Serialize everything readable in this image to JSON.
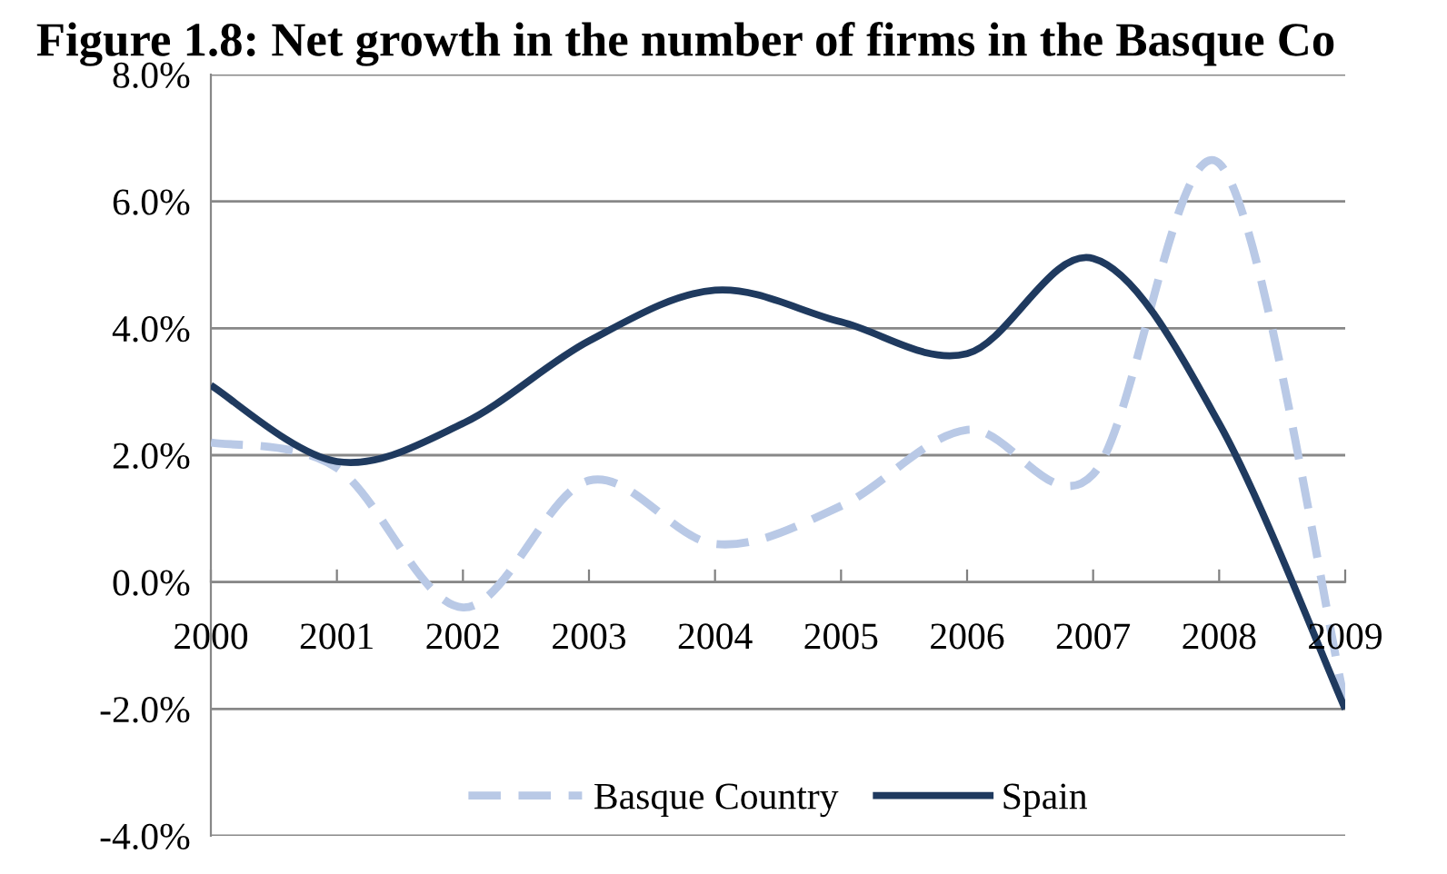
{
  "chart_data": {
    "type": "line",
    "title": "Figure 1.8: Net growth in the number of firms in the Basque Co",
    "categories": [
      "2000",
      "2001",
      "2002",
      "2003",
      "2004",
      "2005",
      "2006",
      "2007",
      "2008",
      "2009"
    ],
    "series": [
      {
        "name": "Basque Country",
        "color": "#b9c9e6",
        "line_style": "dashed",
        "values": [
          2.2,
          1.8,
          -0.4,
          1.6,
          0.6,
          1.2,
          2.4,
          1.7,
          6.6,
          -1.9
        ]
      },
      {
        "name": "Spain",
        "color": "#1f3a5f",
        "line_style": "solid",
        "values": [
          3.1,
          1.9,
          2.5,
          3.8,
          4.6,
          4.1,
          3.6,
          5.1,
          2.5,
          -2.0
        ]
      }
    ],
    "ylim": [
      -4,
      8
    ],
    "yticks": [
      {
        "value": -4,
        "label": "-4.0%"
      },
      {
        "value": -2,
        "label": "-2.0%"
      },
      {
        "value": 0,
        "label": "0.0%"
      },
      {
        "value": 2,
        "label": "2.0%"
      },
      {
        "value": 4,
        "label": "4.0%"
      },
      {
        "value": 6,
        "label": "6.0%"
      },
      {
        "value": 8,
        "label": "8.0%"
      }
    ],
    "grid": "y",
    "legend": "bottom",
    "marker": "none"
  }
}
